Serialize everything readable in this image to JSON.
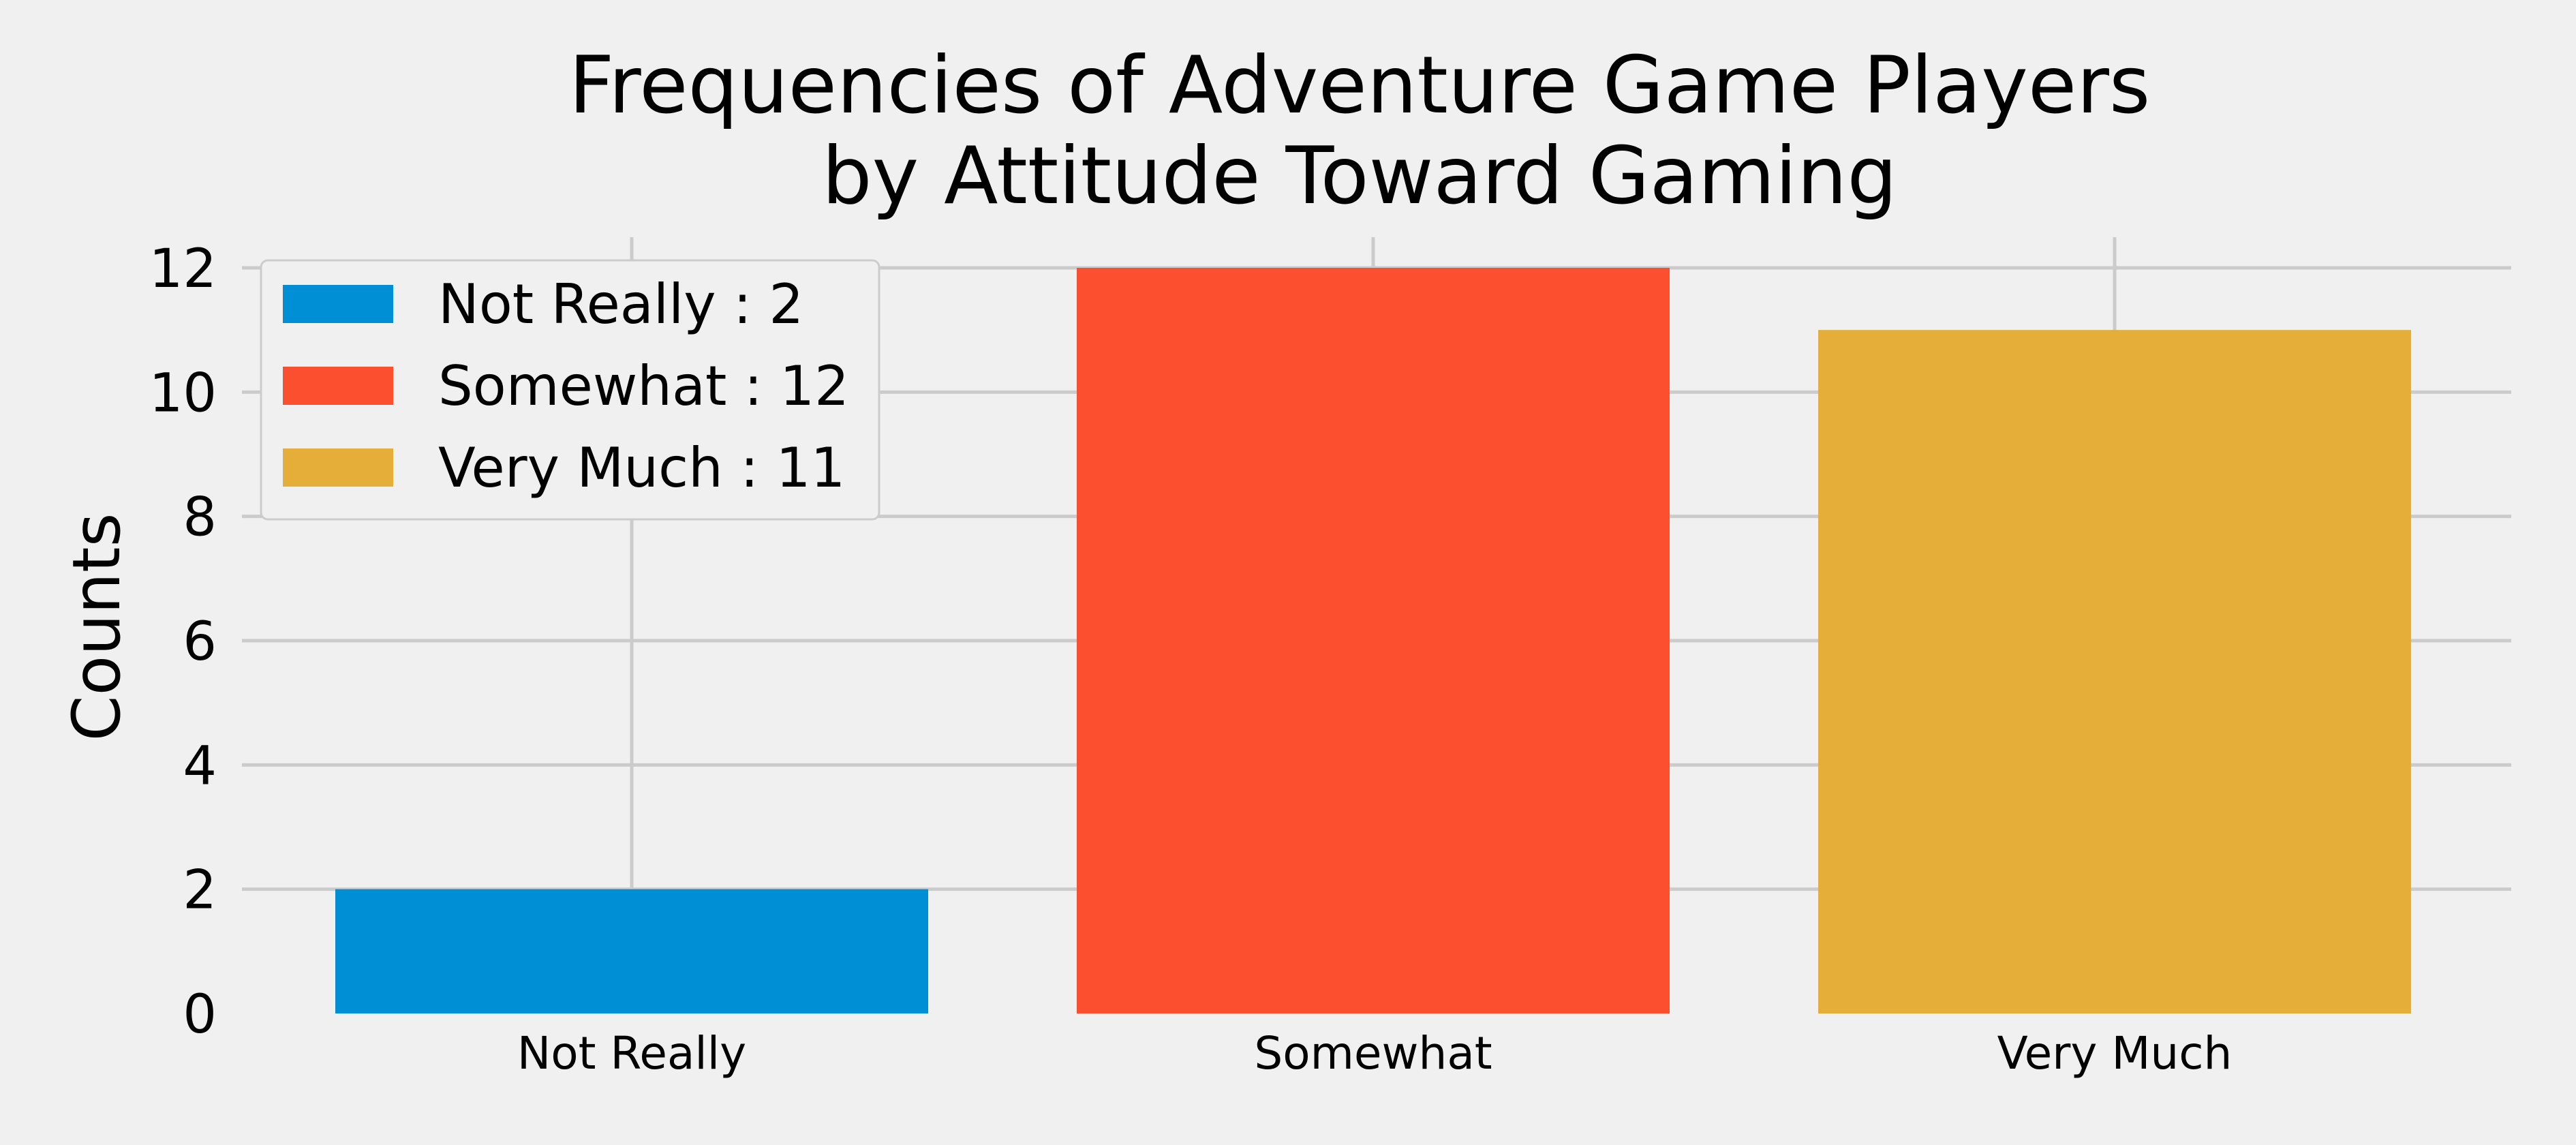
{
  "chart_data": {
    "type": "bar",
    "title": "Frequencies of Adventure Game Players\nby Attitude Toward Gaming",
    "xlabel": "",
    "ylabel": "Counts",
    "categories": [
      "Not Really",
      "Somewhat",
      "Very Much"
    ],
    "values": [
      2,
      12,
      11
    ],
    "colors": [
      "#008fd5",
      "#fc4f30",
      "#e5ae38"
    ],
    "ylim": [
      0,
      12.5
    ],
    "yticks": [
      0,
      2,
      4,
      6,
      8,
      10,
      12
    ],
    "grid": true,
    "legend": {
      "placement": "upper-left",
      "entries": [
        "Not Really : 2",
        "Somewhat : 12",
        "Very Much : 11"
      ]
    },
    "background": "#f0f0f0",
    "grid_color": "#cbcbcb"
  }
}
